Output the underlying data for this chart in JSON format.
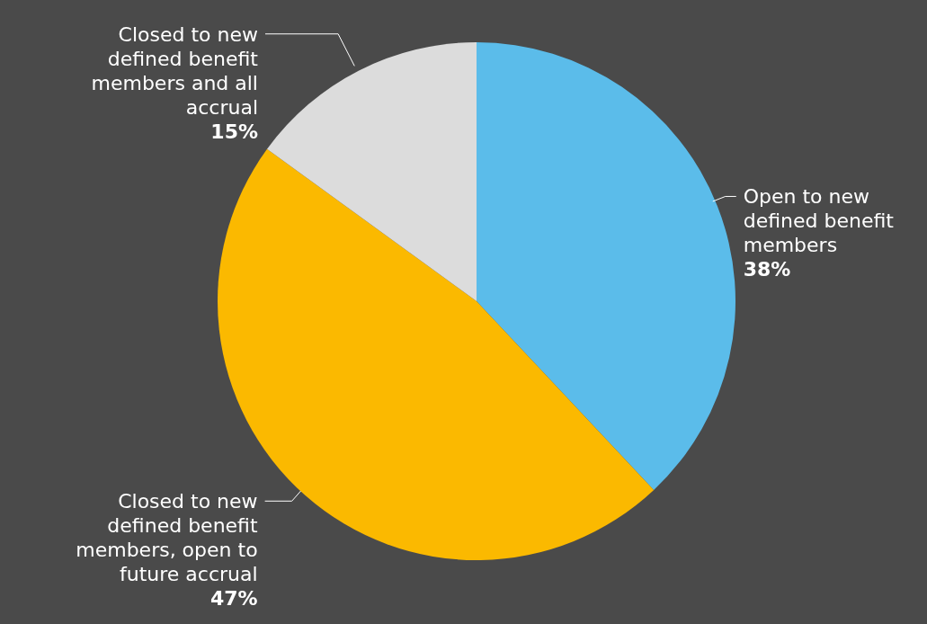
{
  "chart_data": {
    "type": "pie",
    "categories": [
      "Open to new defined benefit members",
      "Closed to new defined benefit members, open to future accrual",
      "Closed to new defined benefit members and all accrual"
    ],
    "values": [
      38,
      47,
      15
    ],
    "colors": [
      "#5bbcea",
      "#fbb900",
      "#dcdcdc"
    ],
    "value_labels": [
      "38%",
      "47%",
      "15%"
    ]
  }
}
